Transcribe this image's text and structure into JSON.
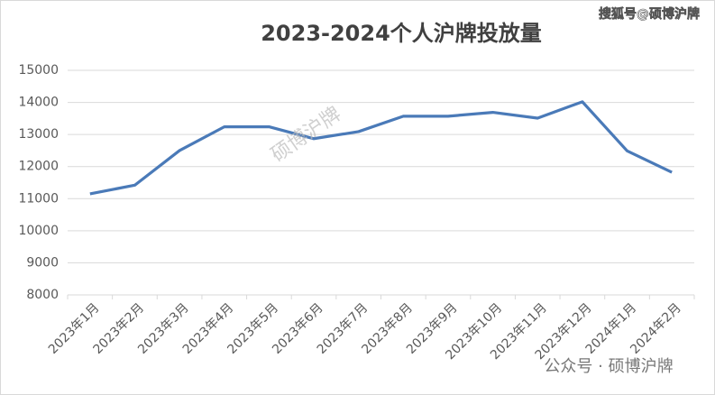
{
  "chart_data": {
    "type": "line",
    "title": "2023-2024个人沪牌投放量",
    "categories": [
      "2023年1月",
      "2023年2月",
      "2023年3月",
      "2023年4月",
      "2023年5月",
      "2023年6月",
      "2023年7月",
      "2023年8月",
      "2023年9月",
      "2023年10月",
      "2023年11月",
      "2023年12月",
      "2024年1月",
      "2024年2月"
    ],
    "values": [
      11150,
      11420,
      12500,
      13240,
      13240,
      12870,
      13090,
      13570,
      13570,
      13690,
      13510,
      14020,
      12490,
      11820
    ],
    "color": "#4a7ab8",
    "ylim": [
      8000,
      15000
    ],
    "yticks": [
      8000,
      9000,
      10000,
      11000,
      12000,
      13000,
      14000,
      15000
    ],
    "grid": true,
    "annotations": [
      "搜狐号@硕博沪牌",
      "硕博沪牌",
      "公众号 · 硕博沪牌"
    ]
  }
}
